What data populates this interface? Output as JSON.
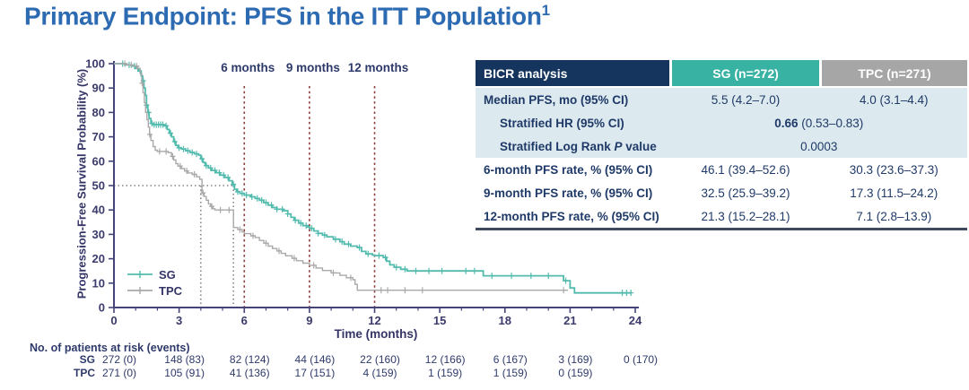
{
  "title": {
    "text": "Primary Endpoint: PFS in the ITT Population",
    "sup": "1"
  },
  "colors": {
    "title_blue": "#2c6ab1",
    "navy_text": "#1f3a68",
    "axis": "#44447a",
    "sg_teal": "#52bbae",
    "tpc_gray": "#a9a9a9",
    "marker_red": "#8f3d3b",
    "median_gray": "#6b6b6b",
    "header_navy": "#16355e",
    "header_teal": "#38b2a3",
    "header_gray": "#a6a6a6",
    "row_tint": "#dce9ee"
  },
  "chart_data": {
    "type": "line",
    "subtype": "kaplan-meier-step",
    "title": "",
    "xlabel": "Time (months)",
    "ylabel": "Progression-Free Survival Probability (%)",
    "xlim": [
      0,
      24
    ],
    "ylim": [
      0,
      100
    ],
    "x_major_ticks": [
      0,
      3,
      6,
      9,
      12,
      15,
      18,
      21,
      24
    ],
    "x_minor_tick_every": 1,
    "y_major_ticks": [
      0,
      10,
      20,
      30,
      40,
      50,
      60,
      70,
      80,
      90,
      100
    ],
    "grid": false,
    "legend_position": "lower-left",
    "time_markers": [
      {
        "x": 6,
        "label": "6 months"
      },
      {
        "x": 9,
        "label": "9 months"
      },
      {
        "x": 12,
        "label": "12 months"
      }
    ],
    "median_guides": {
      "level_pct": 50,
      "sg_median_months": 5.5,
      "tpc_median_months": 4.0
    },
    "series": [
      {
        "name": "SG",
        "color": "#52bbae",
        "points": [
          [
            0,
            100
          ],
          [
            0.5,
            99.5
          ],
          [
            0.8,
            99
          ],
          [
            1.0,
            98
          ],
          [
            1.15,
            97
          ],
          [
            1.25,
            95
          ],
          [
            1.32,
            93
          ],
          [
            1.38,
            90
          ],
          [
            1.44,
            87
          ],
          [
            1.5,
            83
          ],
          [
            1.56,
            80
          ],
          [
            1.62,
            77.5
          ],
          [
            1.7,
            75.5
          ],
          [
            1.8,
            75
          ],
          [
            2.3,
            74.5
          ],
          [
            2.45,
            73
          ],
          [
            2.55,
            71.5
          ],
          [
            2.65,
            70
          ],
          [
            2.75,
            68
          ],
          [
            2.85,
            66.5
          ],
          [
            2.95,
            65.5
          ],
          [
            3.1,
            65
          ],
          [
            3.3,
            64.3
          ],
          [
            3.5,
            63.6
          ],
          [
            3.7,
            63
          ],
          [
            3.9,
            62.5
          ],
          [
            4.0,
            61
          ],
          [
            4.1,
            59.5
          ],
          [
            4.2,
            58.2
          ],
          [
            4.35,
            57.2
          ],
          [
            4.5,
            56.2
          ],
          [
            4.7,
            55.3
          ],
          [
            4.9,
            54.3
          ],
          [
            5.1,
            53.3
          ],
          [
            5.3,
            52
          ],
          [
            5.45,
            50.5
          ],
          [
            5.55,
            48.5
          ],
          [
            5.65,
            47.5
          ],
          [
            5.8,
            46.8
          ],
          [
            6.0,
            46.1
          ],
          [
            6.3,
            45.4
          ],
          [
            6.5,
            44.7
          ],
          [
            6.7,
            44
          ],
          [
            6.9,
            43
          ],
          [
            7.1,
            42
          ],
          [
            7.3,
            41
          ],
          [
            7.5,
            40.3
          ],
          [
            7.8,
            39.7
          ],
          [
            8.0,
            38.4
          ],
          [
            8.15,
            37
          ],
          [
            8.3,
            35.8
          ],
          [
            8.5,
            34.6
          ],
          [
            8.7,
            33.6
          ],
          [
            8.9,
            33
          ],
          [
            9.0,
            32.5
          ],
          [
            9.2,
            31.4
          ],
          [
            9.4,
            30.4
          ],
          [
            9.6,
            29.7
          ],
          [
            9.8,
            29
          ],
          [
            10.1,
            28
          ],
          [
            10.4,
            27
          ],
          [
            10.6,
            26
          ],
          [
            10.9,
            25.2
          ],
          [
            11.2,
            24.6
          ],
          [
            11.4,
            23
          ],
          [
            11.6,
            22
          ],
          [
            11.9,
            21.5
          ],
          [
            12.0,
            21.3
          ],
          [
            12.4,
            20.5
          ],
          [
            12.55,
            19
          ],
          [
            12.7,
            17.5
          ],
          [
            12.9,
            16.5
          ],
          [
            13.2,
            15.7
          ],
          [
            13.5,
            15
          ],
          [
            17.0,
            13
          ],
          [
            20.7,
            11
          ],
          [
            21.0,
            8
          ],
          [
            21.2,
            6
          ],
          [
            23.8,
            6
          ]
        ],
        "censor_marks": [
          0.4,
          0.7,
          0.95,
          1.1,
          1.35,
          1.5,
          1.6,
          1.75,
          1.85,
          1.95,
          2.05,
          2.15,
          2.25,
          2.4,
          2.6,
          2.8,
          3.0,
          3.2,
          3.4,
          3.6,
          3.8,
          4.05,
          4.25,
          4.45,
          4.65,
          4.85,
          5.05,
          5.25,
          5.5,
          5.7,
          5.9,
          6.1,
          6.35,
          6.6,
          6.8,
          7.0,
          7.25,
          7.5,
          7.75,
          8.0,
          8.35,
          8.6,
          8.85,
          9.1,
          9.4,
          9.7,
          10.2,
          10.5,
          10.8,
          11.3,
          11.7,
          12.2,
          12.5,
          13.0,
          13.4,
          13.9,
          14.5,
          15.1,
          16.2,
          16.6,
          17.4,
          18.3,
          19.2,
          20.0,
          20.8,
          23.4,
          23.6,
          23.8
        ]
      },
      {
        "name": "TPC",
        "color": "#a9a9a9",
        "points": [
          [
            0,
            100
          ],
          [
            0.6,
            99.5
          ],
          [
            0.9,
            99
          ],
          [
            1.1,
            98
          ],
          [
            1.2,
            96
          ],
          [
            1.28,
            92
          ],
          [
            1.34,
            88
          ],
          [
            1.4,
            84
          ],
          [
            1.46,
            80
          ],
          [
            1.52,
            77
          ],
          [
            1.58,
            74
          ],
          [
            1.64,
            71
          ],
          [
            1.7,
            68.5
          ],
          [
            1.8,
            66
          ],
          [
            1.9,
            64.5
          ],
          [
            2.0,
            64
          ],
          [
            2.5,
            63.5
          ],
          [
            2.65,
            62
          ],
          [
            2.75,
            60.5
          ],
          [
            2.85,
            59
          ],
          [
            2.95,
            58
          ],
          [
            3.1,
            57
          ],
          [
            3.25,
            56
          ],
          [
            3.4,
            55.2
          ],
          [
            3.6,
            54.6
          ],
          [
            3.8,
            53.6
          ],
          [
            3.95,
            52.6
          ],
          [
            4.05,
            47
          ],
          [
            4.15,
            45.5
          ],
          [
            4.25,
            44
          ],
          [
            4.35,
            42.5
          ],
          [
            4.45,
            41.5
          ],
          [
            4.55,
            40.5
          ],
          [
            4.65,
            40
          ],
          [
            5.5,
            32.8
          ],
          [
            5.7,
            32
          ],
          [
            5.9,
            31
          ],
          [
            6.0,
            30.3
          ],
          [
            6.3,
            29.4
          ],
          [
            6.5,
            28.7
          ],
          [
            6.7,
            27.5
          ],
          [
            6.9,
            26.4
          ],
          [
            7.1,
            25.2
          ],
          [
            7.3,
            24.2
          ],
          [
            7.5,
            23.2
          ],
          [
            7.7,
            22.2
          ],
          [
            7.9,
            21.2
          ],
          [
            8.2,
            20.2
          ],
          [
            8.4,
            19.2
          ],
          [
            8.7,
            18.2
          ],
          [
            9.0,
            17.3
          ],
          [
            9.3,
            16.2
          ],
          [
            9.6,
            15.2
          ],
          [
            10.0,
            14.2
          ],
          [
            10.4,
            13.2
          ],
          [
            10.7,
            12.2
          ],
          [
            11.0,
            11.4
          ],
          [
            11.1,
            9.5
          ],
          [
            11.2,
            7.1
          ],
          [
            20.9,
            7.1
          ]
        ],
        "censor_marks": [
          0.5,
          0.8,
          1.05,
          1.3,
          1.65,
          2.1,
          2.4,
          2.7,
          3.05,
          3.35,
          3.7,
          4.1,
          4.5,
          4.9,
          5.3,
          5.8,
          6.4,
          7.0,
          7.6,
          8.3,
          9.2,
          10.1,
          10.9,
          12.3,
          12.6,
          13.4,
          14.2,
          20.7
        ]
      }
    ],
    "at_risk": {
      "title": "No. of patients at risk (events)",
      "rows": [
        {
          "name": "SG",
          "values": [
            "272 (0)",
            "148 (83)",
            "82 (124)",
            "44 (146)",
            "22 (160)",
            "12 (166)",
            "6 (167)",
            "3 (169)",
            "0 (170)"
          ]
        },
        {
          "name": "TPC",
          "values": [
            "271 (0)",
            "105 (91)",
            "41 (136)",
            "17 (151)",
            "4 (159)",
            "1 (159)",
            "1 (159)",
            "0 (159)"
          ]
        }
      ]
    }
  },
  "table": {
    "columns": {
      "label": "BICR analysis",
      "sg": "SG (n=272)",
      "tpc": "TPC (n=271)"
    },
    "rows": [
      {
        "tint": true,
        "indent": false,
        "label": [
          {
            "t": "Median PFS, mo (95% CI)"
          }
        ],
        "sg": [
          {
            "t": "5.5 (4.2–7.0)"
          }
        ],
        "tpc": [
          {
            "t": "4.0 (3.1–4.4)"
          }
        ]
      },
      {
        "tint": true,
        "indent": true,
        "label": [
          {
            "t": "Stratified HR (95% CI)"
          }
        ],
        "span": [
          {
            "t": "0.66",
            "b": true
          },
          {
            "t": " (0.53–0.83)"
          }
        ]
      },
      {
        "tint": true,
        "indent": true,
        "label": [
          {
            "t": "Stratified Log Rank "
          },
          {
            "t": "P",
            "i": true
          },
          {
            "t": " value"
          }
        ],
        "span": [
          {
            "t": "0.0003"
          }
        ]
      },
      {
        "tint": false,
        "indent": false,
        "label": [
          {
            "t": "6-month PFS rate, % (95% CI)"
          }
        ],
        "sg": [
          {
            "t": "46.1 (39.4–52.6)"
          }
        ],
        "tpc": [
          {
            "t": "30.3 (23.6–37.3)"
          }
        ]
      },
      {
        "tint": false,
        "indent": false,
        "label": [
          {
            "t": "9-month PFS rate, % (95% CI)"
          }
        ],
        "sg": [
          {
            "t": "32.5 (25.9–39.2)"
          }
        ],
        "tpc": [
          {
            "t": "17.3 (11.5–24.2)"
          }
        ]
      },
      {
        "tint": false,
        "indent": false,
        "label": [
          {
            "t": "12-month PFS rate, % (95% CI)"
          }
        ],
        "sg": [
          {
            "t": "21.3 (15.2–28.1)"
          }
        ],
        "tpc": [
          {
            "t": "7.1 (2.8–13.9)"
          }
        ]
      }
    ]
  }
}
